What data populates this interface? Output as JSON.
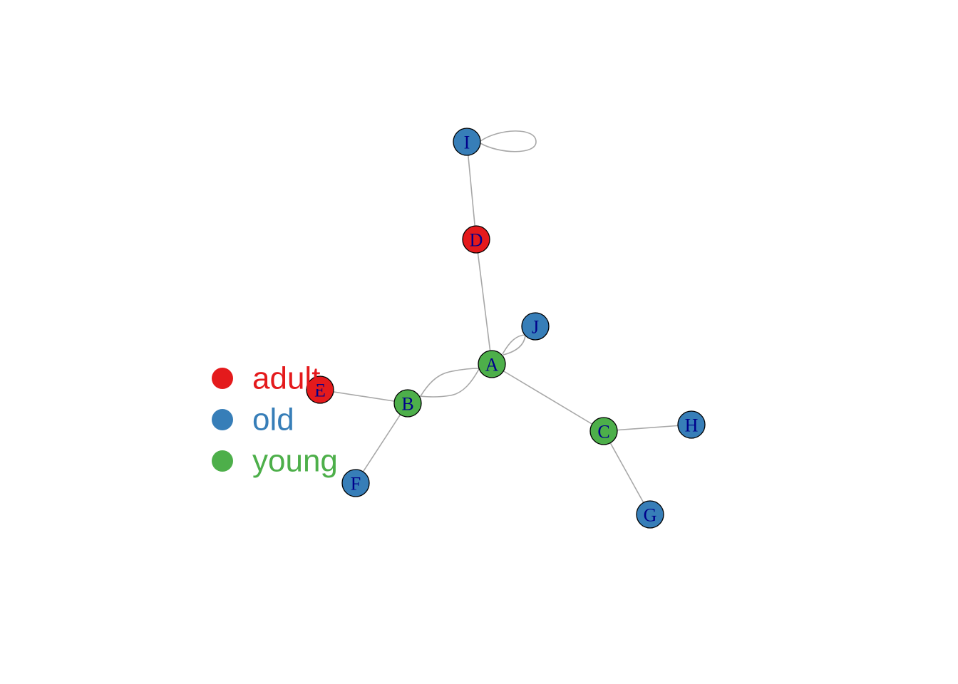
{
  "colors": {
    "adult": "#e41a1c",
    "old": "#377eb8",
    "young": "#4daf4a",
    "edge": "#a8a8a8",
    "label": "#00008b"
  },
  "nodes": [
    {
      "id": "A",
      "label": "A",
      "group": "young"
    },
    {
      "id": "B",
      "label": "B",
      "group": "young"
    },
    {
      "id": "C",
      "label": "C",
      "group": "young"
    },
    {
      "id": "D",
      "label": "D",
      "group": "adult"
    },
    {
      "id": "E",
      "label": "E",
      "group": "adult"
    },
    {
      "id": "F",
      "label": "F",
      "group": "old"
    },
    {
      "id": "G",
      "label": "G",
      "group": "old"
    },
    {
      "id": "H",
      "label": "H",
      "group": "old"
    },
    {
      "id": "I",
      "label": "I",
      "group": "old"
    },
    {
      "id": "J",
      "label": "J",
      "group": "old"
    }
  ],
  "edges": [
    {
      "from": "I",
      "to": "I"
    },
    {
      "from": "I",
      "to": "D"
    },
    {
      "from": "D",
      "to": "A"
    },
    {
      "from": "A",
      "to": "J"
    },
    {
      "from": "J",
      "to": "A"
    },
    {
      "from": "A",
      "to": "B"
    },
    {
      "from": "B",
      "to": "A"
    },
    {
      "from": "A",
      "to": "C"
    },
    {
      "from": "B",
      "to": "E"
    },
    {
      "from": "B",
      "to": "F"
    },
    {
      "from": "C",
      "to": "H"
    },
    {
      "from": "C",
      "to": "G"
    }
  ],
  "legend": {
    "items": [
      {
        "label": "adult",
        "group": "adult"
      },
      {
        "label": "old",
        "group": "old"
      },
      {
        "label": "young",
        "group": "young"
      }
    ]
  }
}
